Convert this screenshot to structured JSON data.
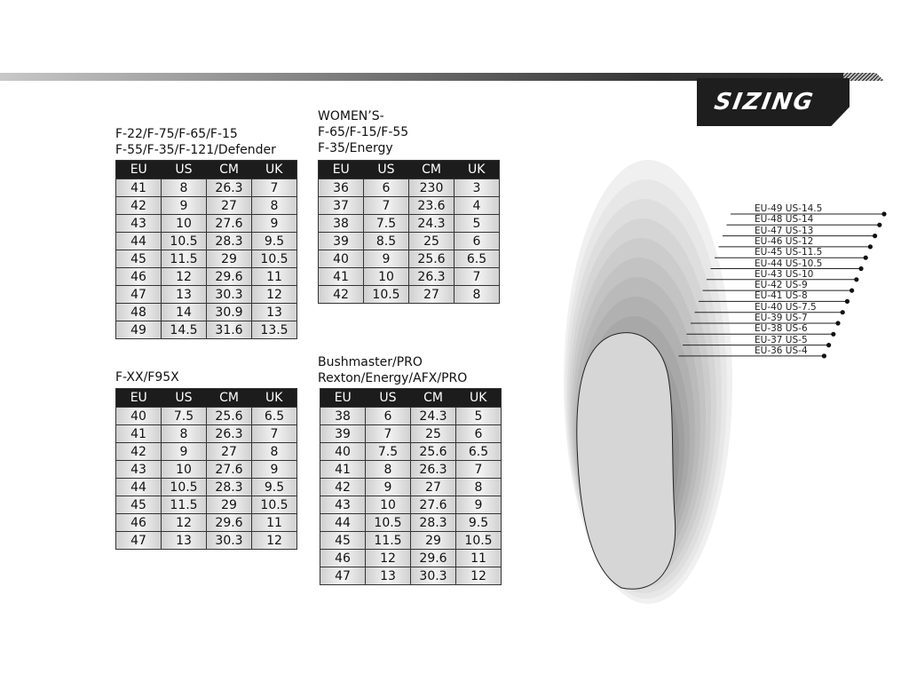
{
  "header": {
    "title": "SIZING"
  },
  "headers": [
    "EU",
    "US",
    "CM",
    "UK"
  ],
  "tables": [
    {
      "title_lines": [
        "F-22/F-75/F-65/F-15",
        "F-55/F-35/F-121/Defender"
      ],
      "rows": [
        [
          "41",
          "8",
          "26.3",
          "7"
        ],
        [
          "42",
          "9",
          "27",
          "8"
        ],
        [
          "43",
          "10",
          "27.6",
          "9"
        ],
        [
          "44",
          "10.5",
          "28.3",
          "9.5"
        ],
        [
          "45",
          "11.5",
          "29",
          "10.5"
        ],
        [
          "46",
          "12",
          "29.6",
          "11"
        ],
        [
          "47",
          "13",
          "30.3",
          "12"
        ],
        [
          "48",
          "14",
          "30.9",
          "13"
        ],
        [
          "49",
          "14.5",
          "31.6",
          "13.5"
        ]
      ]
    },
    {
      "title_lines": [
        "WOMEN’S-",
        "F-65/F-15/F-55",
        "F-35/Energy"
      ],
      "rows": [
        [
          "36",
          "6",
          "230",
          "3"
        ],
        [
          "37",
          "7",
          "23.6",
          "4"
        ],
        [
          "38",
          "7.5",
          "24.3",
          "5"
        ],
        [
          "39",
          "8.5",
          "25",
          "6"
        ],
        [
          "40",
          "9",
          "25.6",
          "6.5"
        ],
        [
          "41",
          "10",
          "26.3",
          "7"
        ],
        [
          "42",
          "10.5",
          "27",
          "8"
        ]
      ]
    },
    {
      "title_lines": [
        "F-XX/F95X"
      ],
      "rows": [
        [
          "40",
          "7.5",
          "25.6",
          "6.5"
        ],
        [
          "41",
          "8",
          "26.3",
          "7"
        ],
        [
          "42",
          "9",
          "27",
          "8"
        ],
        [
          "43",
          "10",
          "27.6",
          "9"
        ],
        [
          "44",
          "10.5",
          "28.3",
          "9.5"
        ],
        [
          "45",
          "11.5",
          "29",
          "10.5"
        ],
        [
          "46",
          "12",
          "29.6",
          "11"
        ],
        [
          "47",
          "13",
          "30.3",
          "12"
        ]
      ]
    },
    {
      "title_lines": [
        "Bushmaster/PRO",
        "Rexton/Energy/AFX/PRO"
      ],
      "rows": [
        [
          "38",
          "6",
          "24.3",
          "5"
        ],
        [
          "39",
          "7",
          "25",
          "6"
        ],
        [
          "40",
          "7.5",
          "25.6",
          "6.5"
        ],
        [
          "41",
          "8",
          "26.3",
          "7"
        ],
        [
          "42",
          "9",
          "27",
          "8"
        ],
        [
          "43",
          "10",
          "27.6",
          "9"
        ],
        [
          "44",
          "10.5",
          "28.3",
          "9.5"
        ],
        [
          "45",
          "11.5",
          "29",
          "10.5"
        ],
        [
          "46",
          "12",
          "29.6",
          "11"
        ],
        [
          "47",
          "13",
          "30.3",
          "12"
        ]
      ]
    }
  ],
  "foot_labels": [
    "EU-49  US-14.5",
    "EU-48  US-14",
    "EU-47 US-13",
    "EU-46  US-12",
    "EU-45  US-11.5",
    "EU-44  US-10.5",
    "EU-43  US-10",
    "EU-42  US-9",
    "EU-41  US-8",
    "EU-40  US-7.5",
    "EU-39  US-7",
    "EU-38  US-6",
    "EU-37  US-5",
    "EU-36  US-4"
  ]
}
